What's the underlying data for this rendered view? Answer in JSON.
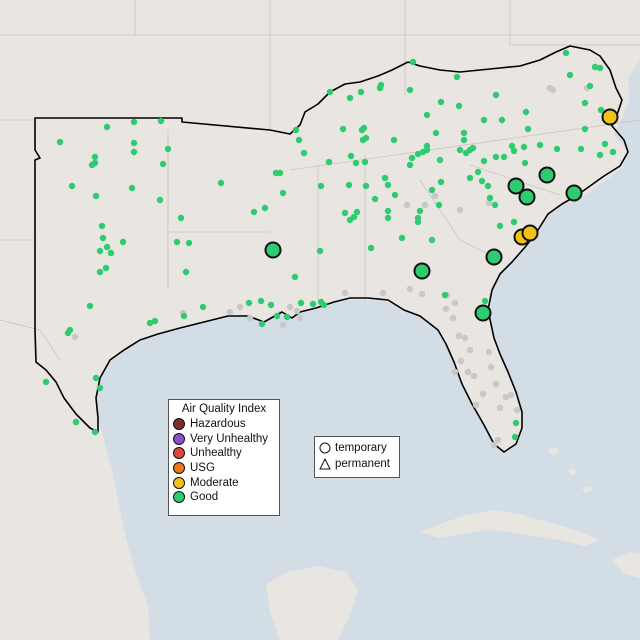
{
  "legend": {
    "title": "Air Quality Index",
    "items": [
      {
        "label": "Hazardous",
        "color": "#7e2d2d"
      },
      {
        "label": "Very Unhealthy",
        "color": "#8e4fc2"
      },
      {
        "label": "Unhealthy",
        "color": "#e0483b"
      },
      {
        "label": "USG",
        "color": "#e57b16"
      },
      {
        "label": "Moderate",
        "color": "#f2c218"
      },
      {
        "label": "Good",
        "color": "#2ecb70"
      }
    ]
  },
  "monitor_types": {
    "items": [
      {
        "label": "temporary",
        "shape": "circle-icon"
      },
      {
        "label": "permanent",
        "shape": "triangle-icon"
      }
    ]
  },
  "colors": {
    "water": "#d3dde6",
    "land": "#e9e5e1",
    "border": "#c8c4c0",
    "region_outline": "#000000",
    "inactive_monitor": "#c8c8c8"
  },
  "large_monitors": [
    {
      "category": "Good"
    },
    {
      "category": "Good"
    },
    {
      "category": "Good"
    },
    {
      "category": "Good"
    },
    {
      "category": "Good"
    },
    {
      "category": "Good"
    },
    {
      "category": "Good"
    },
    {
      "category": "Good"
    },
    {
      "category": "Moderate"
    },
    {
      "category": "Moderate"
    },
    {
      "category": "Moderate"
    }
  ]
}
